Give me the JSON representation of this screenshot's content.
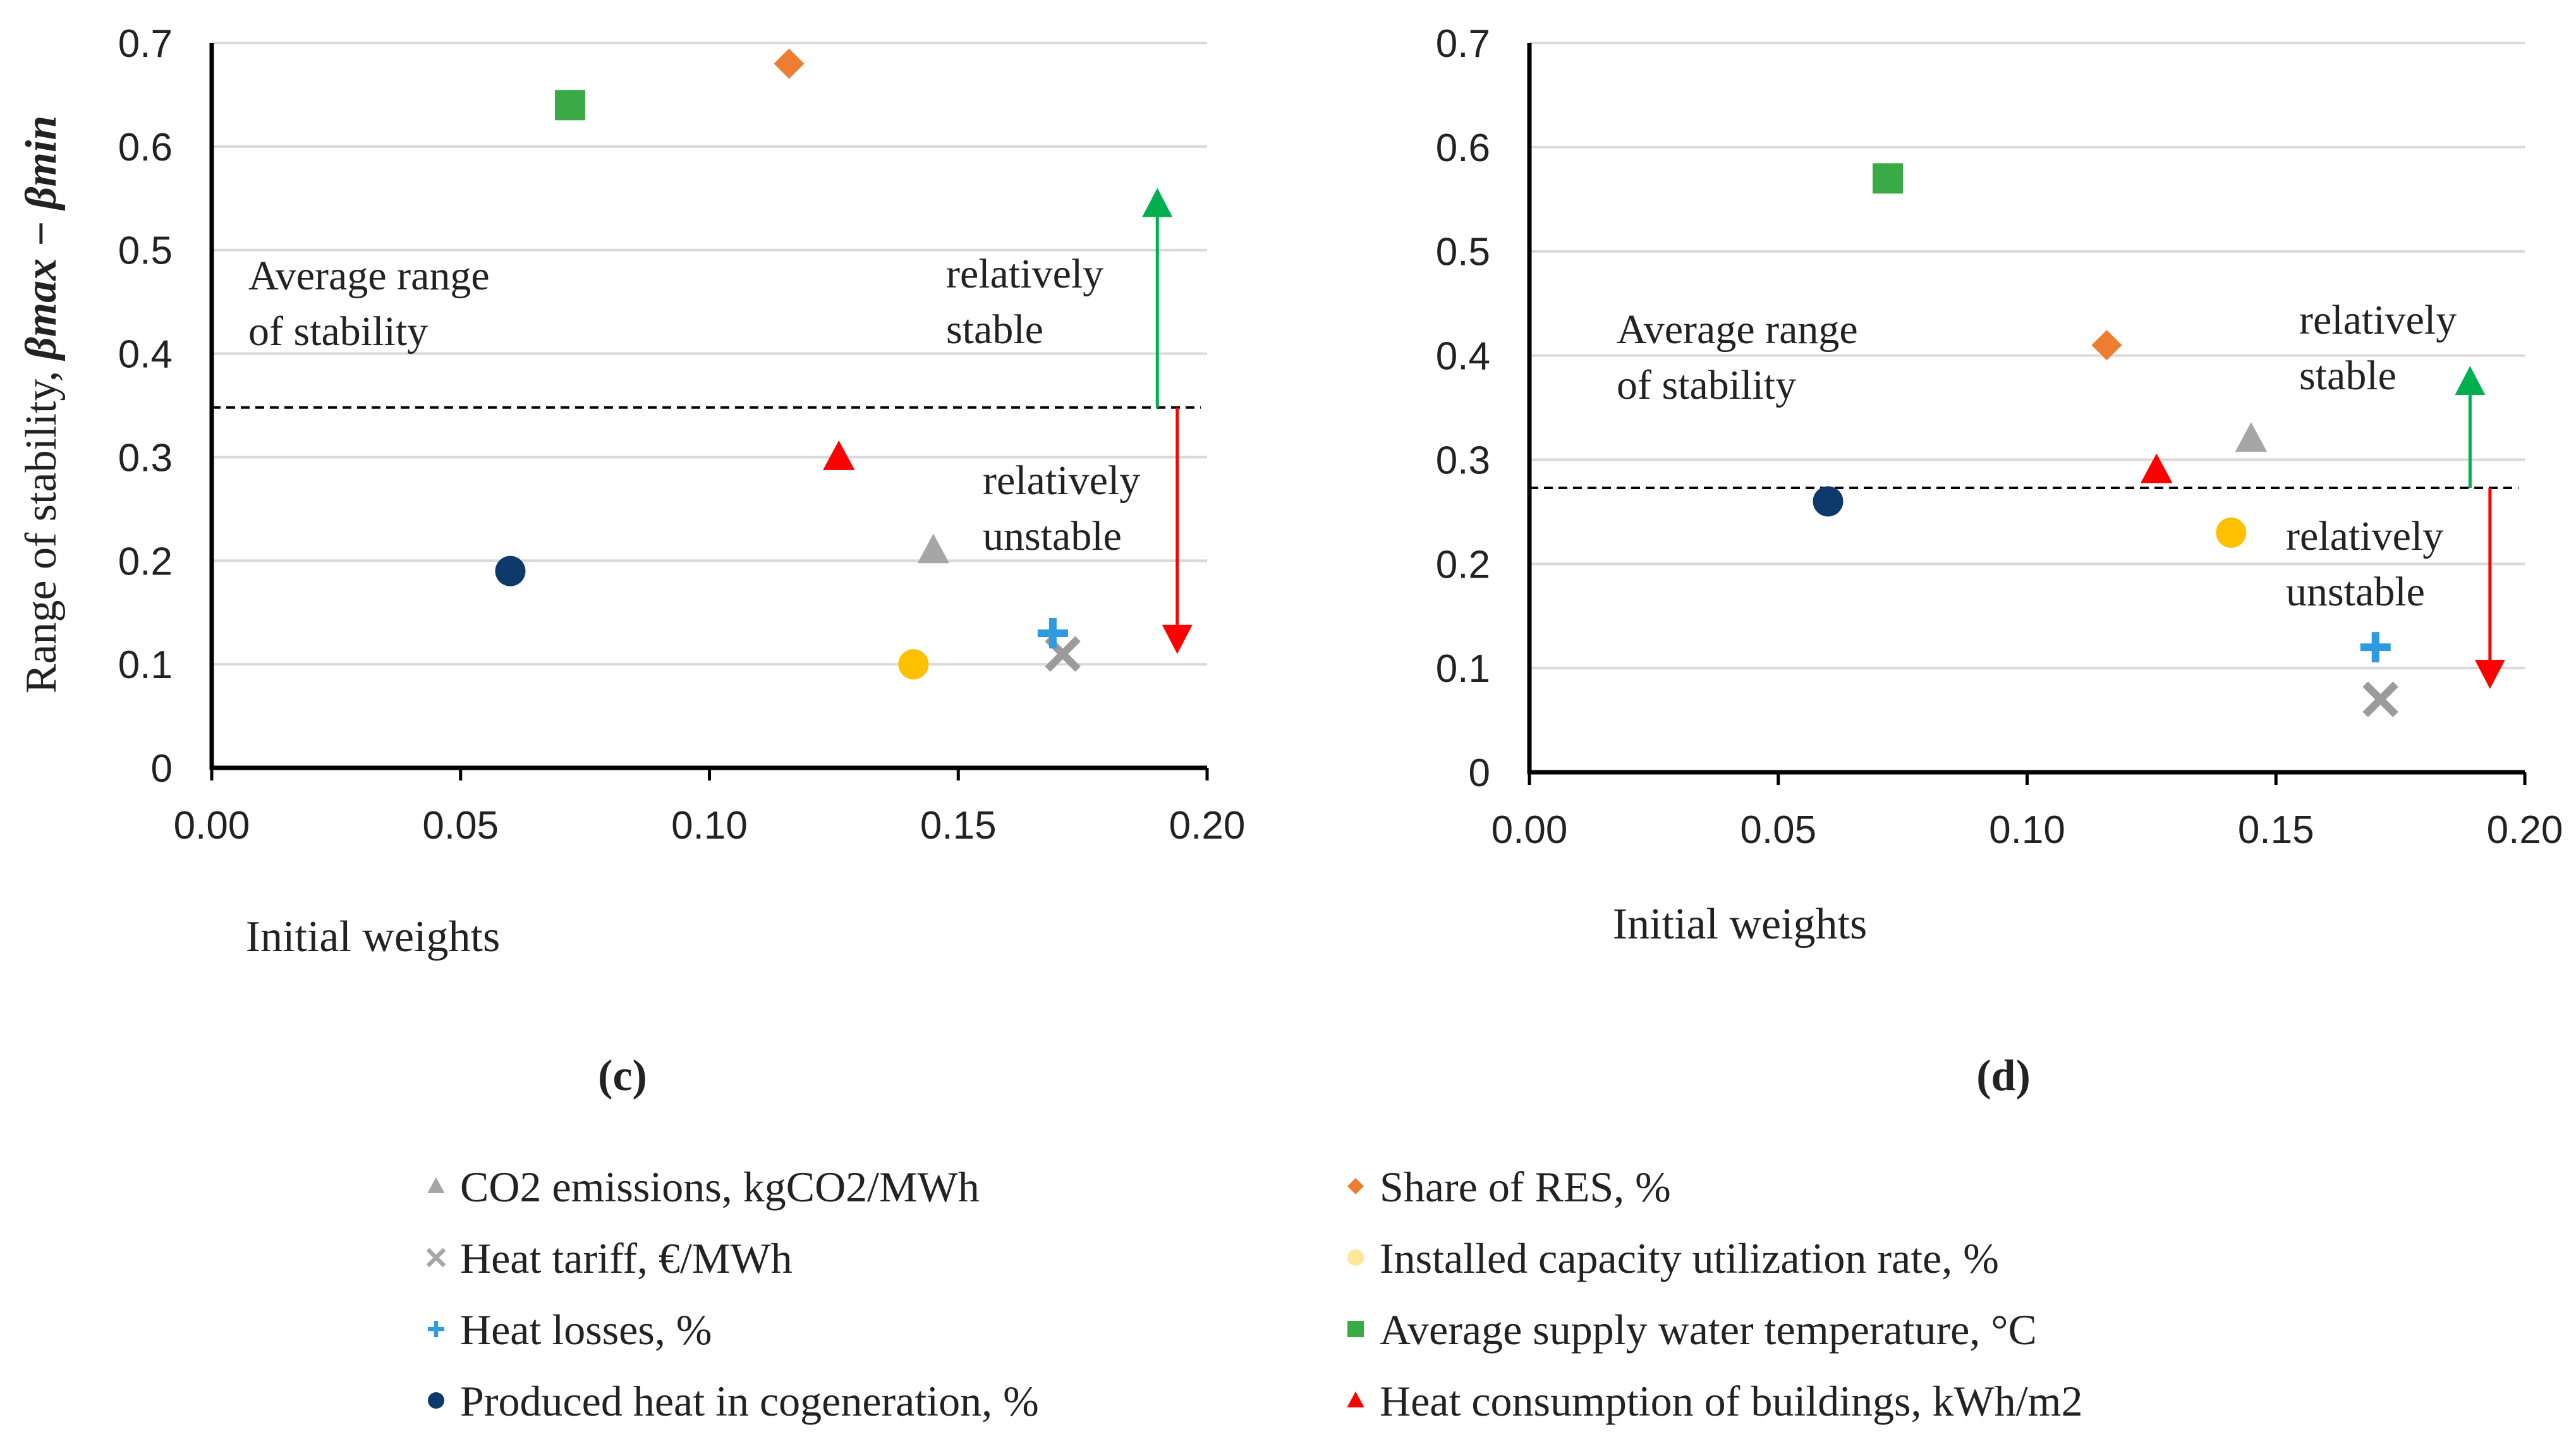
{
  "chart_data": [
    {
      "type": "scatter",
      "panel_label": "(c)",
      "title": "",
      "xlabel": "Initial weights",
      "ylabel_prefix": "Range of stability, ",
      "ylabel_math": "βmax  − βmin",
      "xlim": [
        0,
        0.2
      ],
      "ylim": [
        0,
        0.7
      ],
      "xticks": [
        "0.00",
        "0.05",
        "0.10",
        "0.15",
        "0.20"
      ],
      "yticks": [
        "0",
        "0.1",
        "0.2",
        "0.3",
        "0.4",
        "0.5",
        "0.6",
        "0.7"
      ],
      "average_line": 0.348,
      "average_label_1": "Average range",
      "average_label_2": "of stability",
      "stable_label_1": "relatively",
      "stable_label_2": "stable",
      "unstable_label_1": "relatively",
      "unstable_label_2": "unstable",
      "stable_arrow": {
        "x": 0.19,
        "from": 0.348,
        "to": 0.56
      },
      "unstable_arrow": {
        "x": 0.194,
        "from": 0.348,
        "to": 0.11
      },
      "series": [
        {
          "name": "CO2 emissions, kgCO2/MWh",
          "x": 0.145,
          "y": 0.21
        },
        {
          "name": "Heat tariff, €/MWh",
          "x": 0.171,
          "y": 0.11
        },
        {
          "name": "Heat losses, %",
          "x": 0.169,
          "y": 0.13
        },
        {
          "name": "Produced heat in cogeneration, %",
          "x": 0.06,
          "y": 0.19
        },
        {
          "name": "Share of RES, %",
          "x": 0.116,
          "y": 0.68
        },
        {
          "name": "Installed capacity utilization rate, %",
          "x": 0.141,
          "y": 0.1
        },
        {
          "name": "Average supply water temperature, °C",
          "x": 0.072,
          "y": 0.64
        },
        {
          "name": "Heat consumption of buildings, kWh/m2",
          "x": 0.126,
          "y": 0.3
        }
      ]
    },
    {
      "type": "scatter",
      "panel_label": "(d)",
      "title": "",
      "xlabel": "Initial weights",
      "xlim": [
        0,
        0.2
      ],
      "ylim": [
        0,
        0.7
      ],
      "xticks": [
        "0.00",
        "0.05",
        "0.10",
        "0.15",
        "0.20"
      ],
      "yticks": [
        "0",
        "0.1",
        "0.2",
        "0.3",
        "0.4",
        "0.5",
        "0.6",
        "0.7"
      ],
      "average_line": 0.273,
      "average_label_1": "Average range",
      "average_label_2": "of stability",
      "stable_label_1": "relatively",
      "stable_label_2": "stable",
      "unstable_label_1": "relatively",
      "unstable_label_2": "unstable",
      "stable_arrow": {
        "x": 0.189,
        "from": 0.273,
        "to": 0.39
      },
      "unstable_arrow": {
        "x": 0.193,
        "from": 0.273,
        "to": 0.08
      },
      "series": [
        {
          "name": "CO2 emissions, kgCO2/MWh",
          "x": 0.145,
          "y": 0.32
        },
        {
          "name": "Heat tariff, €/MWh",
          "x": 0.171,
          "y": 0.07
        },
        {
          "name": "Heat losses, %",
          "x": 0.17,
          "y": 0.12
        },
        {
          "name": "Produced heat in cogeneration, %",
          "x": 0.06,
          "y": 0.26
        },
        {
          "name": "Share of RES, %",
          "x": 0.116,
          "y": 0.41
        },
        {
          "name": "Installed capacity utilization rate, %",
          "x": 0.141,
          "y": 0.23
        },
        {
          "name": "Average supply water temperature, °C",
          "x": 0.072,
          "y": 0.57
        },
        {
          "name": "Heat consumption of buildings, kWh/m2",
          "x": 0.126,
          "y": 0.29
        }
      ]
    }
  ],
  "legend": [
    {
      "label": "CO2 emissions, kgCO2/MWh",
      "marker": "triangle-icon",
      "color": "#a6a6a6"
    },
    {
      "label": "Share of RES, %",
      "marker": "diamond-icon",
      "color": "#ed7d31"
    },
    {
      "label": "Heat tariff, €/MWh",
      "marker": "cross-icon",
      "color": "#a6a6a6"
    },
    {
      "label": "Installed capacity utilization rate, %",
      "marker": "circle-icon",
      "color": "#ffe699"
    },
    {
      "label": "Heat losses, %",
      "marker": "plus-icon",
      "color": "#2e9be0"
    },
    {
      "label": "Average supply water temperature, °C",
      "marker": "square-icon",
      "color": "#3aaa46"
    },
    {
      "label": "Produced heat in cogeneration, %",
      "marker": "circle-icon",
      "color": "#0e3a6b"
    },
    {
      "label": "Heat consumption of buildings, kWh/m2",
      "marker": "triangle-icon",
      "color": "#ff0000"
    }
  ],
  "marker_styles": {
    "CO2 emissions, kgCO2/MWh": {
      "shape": "triangle",
      "color": "#a6a6a6"
    },
    "Heat tariff, €/MWh": {
      "shape": "cross",
      "color": "#9b9b9b"
    },
    "Heat losses, %": {
      "shape": "plus",
      "color": "#2e9be0"
    },
    "Produced heat in cogeneration, %": {
      "shape": "circle",
      "color": "#0e3a6b"
    },
    "Share of RES, %": {
      "shape": "diamond",
      "color": "#ed7d31"
    },
    "Installed capacity utilization rate, %": {
      "shape": "circle",
      "color": "#ffc000"
    },
    "Average supply water temperature, °C": {
      "shape": "square",
      "color": "#3aaa46"
    },
    "Heat consumption of buildings, kWh/m2": {
      "shape": "triangle",
      "color": "#ff0000"
    }
  },
  "colors": {
    "stable_arrow": "#00b050",
    "unstable_arrow": "#ff0000",
    "grid": "#d9d9d9",
    "axis": "#000000"
  }
}
